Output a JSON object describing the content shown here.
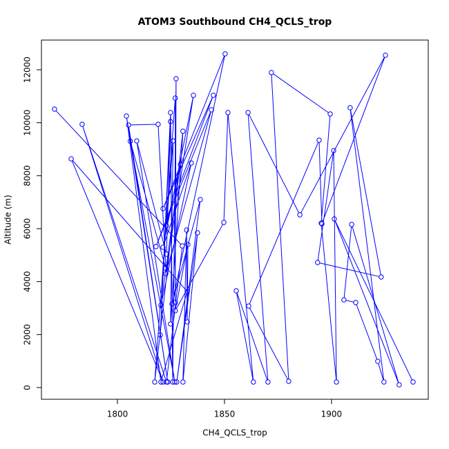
{
  "chart_data": {
    "type": "line",
    "title": "ATOM3 Southbound CH4_QCLS_trop",
    "x_label": "CH4_QCLS_trop",
    "y_label": "Altitude (m)",
    "color": "#0000ff",
    "x": [
      1770.6,
      1830.3,
      1822.9,
      1783.5,
      1821.3,
      1778.4,
      1832.6,
      1820.3,
      1804.2,
      1823.5,
      1805.2,
      1819,
      1822.6,
      1806,
      1826.8,
      1809,
      1822.9,
      1824.8,
      1820,
      1824.8,
      1825.8,
      1827.4,
      1827,
      1827,
      1817.4,
      1830.6,
      1824.8,
      1826,
      1822.9,
      1829.4,
      1820.3,
      1834.5,
      1821.3,
      1835.5,
      1822.6,
      1843.9,
      1818,
      1844.8,
      1821.3,
      1850.3,
      1825.5,
      1838.7,
      1827.7,
      1837.4,
      1830.6,
      1832.3,
      1832.6,
      1832.9,
      1827,
      1849.7,
      1851.6,
      1863.5,
      1855.5,
      1870.3,
      1861,
      1885.2,
      1925.2,
      1895.5,
      1894.2,
      1861.3,
      1880,
      1871.9,
      1899.4,
      1895.2,
      1902.3,
      1901,
      1893.5,
      1923.2,
      1908.7,
      1924.5,
      1921.6,
      1911.3,
      1905.8,
      1909.4,
      1931.6,
      1901.3,
      1938.1
    ],
    "values": [
      10514,
      5348,
      209,
      9940,
      209,
      8636,
      3626,
      209,
      10253,
      209,
      9914,
      9940,
      4500,
      9300,
      209,
      9314,
      5035,
      10044,
      1983,
      10384,
      209,
      11662,
      3200,
      10931,
      209,
      9679,
      2400,
      9314,
      6105,
      8427,
      3105,
      8479,
      5296,
      11036,
      4300,
      10488,
      5322,
      11036,
      6757,
      12601,
      3157,
      7096,
      209,
      5844,
      209,
      5948,
      2478,
      5400,
      2900,
      6235,
      10384,
      209,
      3653,
      209,
      10384,
      6522,
      12549,
      6183,
      9340,
      3078,
      235,
      11897,
      10331,
      6209,
      209,
      8949,
      4722,
      4174,
      10566,
      209,
      991,
      3209,
      3313,
      6157,
      104,
      6366,
      209
    ],
    "xlim": [
      1764.5,
      1945.2
    ],
    "ylim": [
      -443,
      13122
    ],
    "xticks": [
      1800,
      1850,
      1900
    ],
    "yticks": [
      0,
      2000,
      4000,
      6000,
      8000,
      10000,
      12000
    ]
  }
}
